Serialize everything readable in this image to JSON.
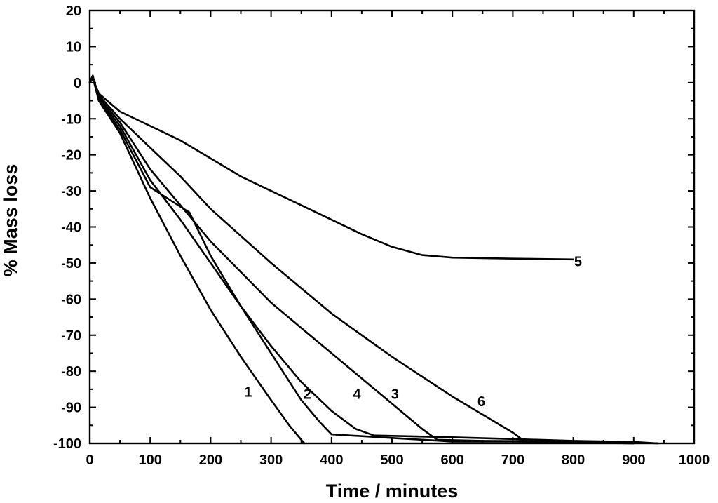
{
  "chart_data": {
    "type": "line",
    "title": "",
    "xlabel": "Time / minutes",
    "ylabel": "% Mass loss",
    "xlim": [
      0,
      1000
    ],
    "ylim": [
      -100,
      20
    ],
    "xticks": [
      0,
      100,
      200,
      300,
      400,
      500,
      600,
      700,
      800,
      900,
      1000
    ],
    "yticks": [
      20,
      10,
      0,
      -10,
      -20,
      -30,
      -40,
      -50,
      -60,
      -70,
      -80,
      -90,
      -100
    ],
    "xtick_labels": [
      "0",
      "100",
      "200",
      "300",
      "400",
      "500",
      "600",
      "700",
      "800",
      "900",
      "1000"
    ],
    "ytick_labels": [
      "20",
      "10",
      "0",
      "-10",
      "-20",
      "-30",
      "-40",
      "-50",
      "-60",
      "-70",
      "-80",
      "-90",
      "-100"
    ],
    "grid": false,
    "line_color": "#000000",
    "series": [
      {
        "name": "1",
        "label_at": [
          262,
          -85.7
        ],
        "points": [
          [
            0,
            0
          ],
          [
            5,
            2
          ],
          [
            15,
            -5
          ],
          [
            50,
            -14
          ],
          [
            100,
            -32
          ],
          [
            150,
            -48
          ],
          [
            200,
            -63
          ],
          [
            250,
            -76
          ],
          [
            300,
            -88
          ],
          [
            330,
            -95
          ],
          [
            355,
            -100
          ]
        ]
      },
      {
        "name": "2",
        "label_at": [
          360,
          -86.3
        ],
        "points": [
          [
            0,
            0
          ],
          [
            5,
            1.5
          ],
          [
            15,
            -5
          ],
          [
            50,
            -13
          ],
          [
            100,
            -29
          ],
          [
            165,
            -36
          ],
          [
            200,
            -48
          ],
          [
            250,
            -62
          ],
          [
            300,
            -75
          ],
          [
            350,
            -88
          ],
          [
            380,
            -94
          ],
          [
            400,
            -97.5
          ],
          [
            500,
            -98.5
          ],
          [
            600,
            -99.5
          ],
          [
            700,
            -99.5
          ],
          [
            800,
            -99.8
          ],
          [
            900,
            -100
          ]
        ]
      },
      {
        "name": "3",
        "label_at": [
          505,
          -86.3
        ],
        "points": [
          [
            0,
            0
          ],
          [
            5,
            1.5
          ],
          [
            15,
            -4
          ],
          [
            50,
            -11
          ],
          [
            100,
            -24
          ],
          [
            150,
            -34
          ],
          [
            200,
            -44
          ],
          [
            300,
            -61
          ],
          [
            400,
            -75
          ],
          [
            500,
            -89
          ],
          [
            550,
            -96
          ],
          [
            575,
            -99
          ],
          [
            650,
            -99.3
          ],
          [
            800,
            -99.5
          ],
          [
            900,
            -99.8
          ],
          [
            940,
            -100
          ]
        ]
      },
      {
        "name": "4",
        "label_at": [
          442,
          -86.3
        ],
        "points": [
          [
            0,
            0
          ],
          [
            5,
            1.5
          ],
          [
            15,
            -4.5
          ],
          [
            50,
            -12
          ],
          [
            100,
            -27
          ],
          [
            150,
            -38
          ],
          [
            200,
            -50
          ],
          [
            250,
            -62
          ],
          [
            300,
            -73
          ],
          [
            350,
            -83
          ],
          [
            400,
            -91
          ],
          [
            440,
            -96
          ],
          [
            470,
            -97.8
          ],
          [
            600,
            -98.3
          ],
          [
            700,
            -98.8
          ],
          [
            800,
            -99.3
          ],
          [
            900,
            -99.6
          ],
          [
            940,
            -100
          ]
        ]
      },
      {
        "name": "5",
        "label_at": [
          808,
          -49.5
        ],
        "points": [
          [
            0,
            0
          ],
          [
            5,
            1
          ],
          [
            15,
            -3
          ],
          [
            50,
            -8
          ],
          [
            100,
            -12
          ],
          [
            150,
            -16
          ],
          [
            200,
            -21
          ],
          [
            250,
            -26
          ],
          [
            300,
            -30
          ],
          [
            350,
            -34
          ],
          [
            400,
            -38
          ],
          [
            450,
            -42
          ],
          [
            500,
            -45.5
          ],
          [
            550,
            -47.8
          ],
          [
            600,
            -48.5
          ],
          [
            700,
            -48.8
          ],
          [
            800,
            -49
          ]
        ]
      },
      {
        "name": "6",
        "label_at": [
          648,
          -88.3
        ],
        "points": [
          [
            0,
            0
          ],
          [
            5,
            1.5
          ],
          [
            15,
            -3.5
          ],
          [
            50,
            -10
          ],
          [
            100,
            -18
          ],
          [
            150,
            -26
          ],
          [
            200,
            -35
          ],
          [
            300,
            -50
          ],
          [
            400,
            -64
          ],
          [
            500,
            -76
          ],
          [
            600,
            -87
          ],
          [
            700,
            -97
          ],
          [
            720,
            -99.5
          ],
          [
            800,
            -99.7
          ],
          [
            900,
            -100
          ]
        ]
      }
    ]
  }
}
